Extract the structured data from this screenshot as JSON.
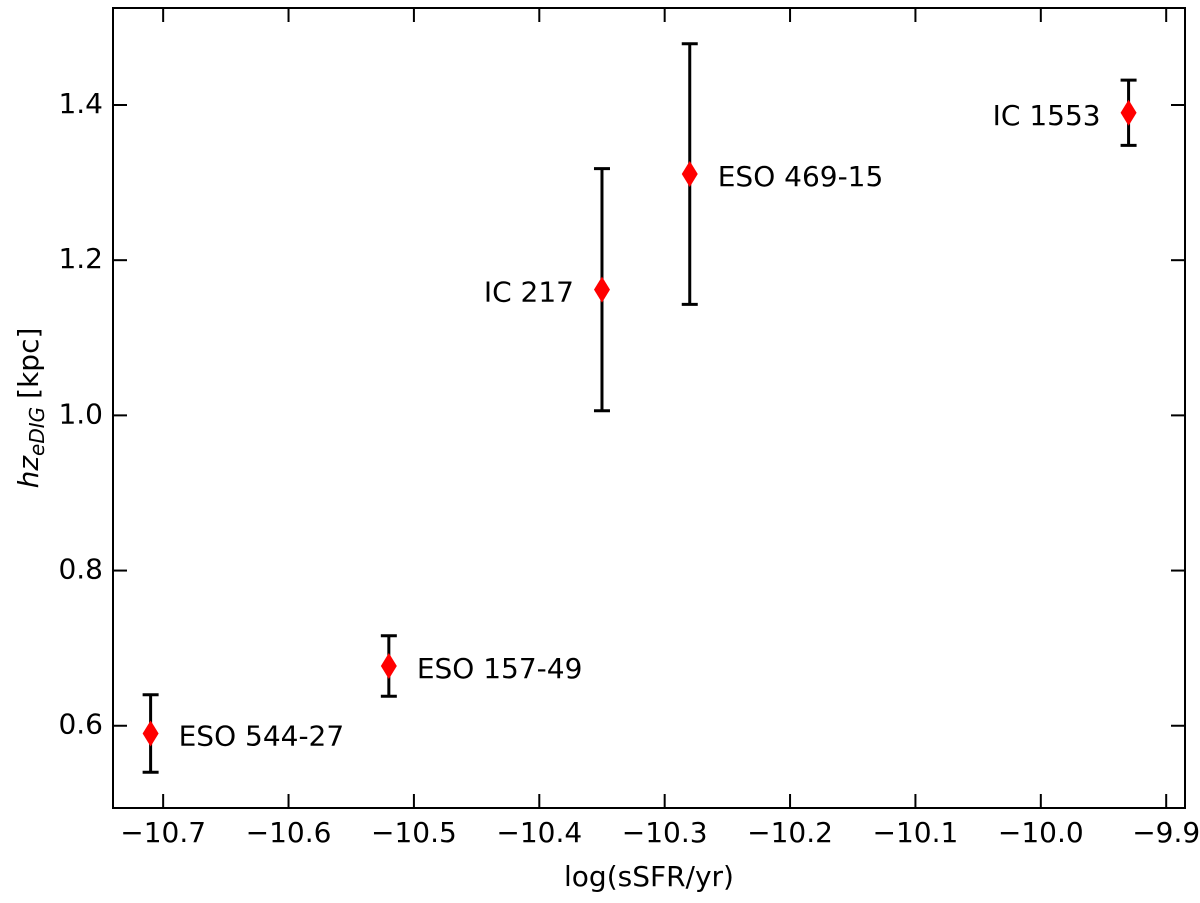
{
  "chart_data": {
    "type": "scatter",
    "xlabel": "log(sSFR/yr)",
    "ylabel": {
      "main": "hz",
      "sub": "eDIG",
      "unit": "[kpc]"
    },
    "series": [
      {
        "labels": [
          "ESO 544-27",
          "ESO 157-49",
          "IC 217",
          "ESO 469-15",
          "IC 1553"
        ],
        "color": "#ff0000",
        "errcolor": "#000000",
        "marker": "diamond",
        "x": [
          -10.71,
          -10.52,
          -10.35,
          -10.28,
          -9.93
        ],
        "values": [
          0.59,
          0.677,
          1.162,
          1.311,
          1.39
        ],
        "yerr": [
          0.05,
          0.039,
          0.156,
          0.168,
          0.042
        ]
      }
    ],
    "xlim": [
      -10.74,
      -9.885
    ],
    "ylim": [
      0.494,
      1.525
    ],
    "xticks": [
      {
        "value": -10.7,
        "label": "−10.7"
      },
      {
        "value": -10.6,
        "label": "−10.6"
      },
      {
        "value": -10.5,
        "label": "−10.5"
      },
      {
        "value": -10.4,
        "label": "−10.4"
      },
      {
        "value": -10.3,
        "label": "−10.3"
      },
      {
        "value": -10.2,
        "label": "−10.2"
      },
      {
        "value": -10.1,
        "label": "−10.1"
      },
      {
        "value": -10.0,
        "label": "−10.0"
      },
      {
        "value": -9.9,
        "label": "−9.9"
      }
    ],
    "yticks": [
      {
        "value": 0.6,
        "label": "0.6"
      },
      {
        "value": 0.8,
        "label": "0.8"
      },
      {
        "value": 1.0,
        "label": "1.0"
      },
      {
        "value": 1.2,
        "label": "1.2"
      },
      {
        "value": 1.4,
        "label": "1.4"
      }
    ],
    "grid": false
  }
}
